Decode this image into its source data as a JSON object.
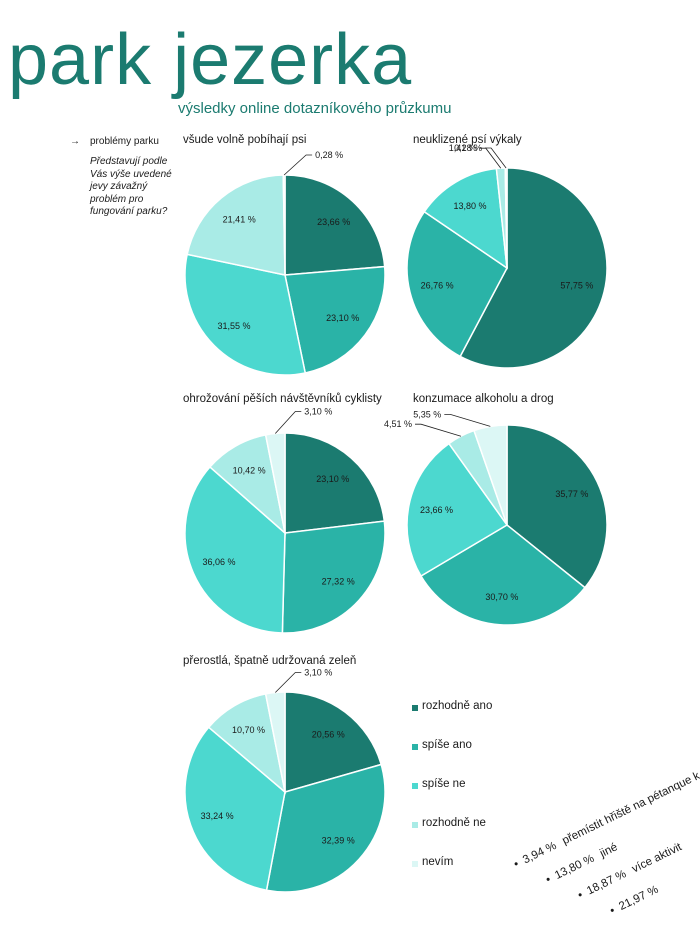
{
  "title": "park jezerka",
  "subtitle": "výsledky online dotazníkového průzkumu",
  "side": {
    "heading": "problémy parku",
    "question": "Představují podle Vás výše uvedené jevy závažný problém pro fungování parku?"
  },
  "colors": [
    "#1b7b70",
    "#2ab3a7",
    "#4cd8cf",
    "#a9ebe6",
    "#dcf7f5"
  ],
  "legend": [
    "rozhodně ano",
    "spíše ano",
    "spíše ne",
    "rozhodně ne",
    "nevím"
  ],
  "chart_data": [
    {
      "type": "pie",
      "title": "všude volně pobíhají psi",
      "categories": [
        "rozhodně ano",
        "spíše ano",
        "spíše ne",
        "rozhodně ne",
        "nevím"
      ],
      "values": [
        23.66,
        23.1,
        31.55,
        21.41,
        0.28
      ],
      "labels": [
        "23,66 %",
        "23,10 %",
        "31,55 %",
        "21,41 %",
        "0,28 %"
      ]
    },
    {
      "type": "pie",
      "title": "neuklizené psí výkaly",
      "categories": [
        "rozhodně ano",
        "spíše ano",
        "spíše ne",
        "rozhodně ne",
        "nevím"
      ],
      "values": [
        57.75,
        26.76,
        13.8,
        1.41,
        0.28
      ],
      "labels": [
        "57,75 %",
        "26,76 %",
        "13,80 %",
        "1,41 %",
        "0,28 %"
      ]
    },
    {
      "type": "pie",
      "title": "ohrožování pěších návštěvníků cyklisty",
      "categories": [
        "rozhodně ano",
        "spíše ano",
        "spíše ne",
        "rozhodně ne",
        "nevím"
      ],
      "values": [
        23.1,
        27.32,
        36.06,
        10.42,
        3.1
      ],
      "labels": [
        "23,10 %",
        "27,32 %",
        "36,06 %",
        "10,42 %",
        "3,10 %"
      ]
    },
    {
      "type": "pie",
      "title": "konzumace alkoholu a drog",
      "categories": [
        "rozhodně ano",
        "spíše ano",
        "spíše ne",
        "rozhodně ne",
        "nevím"
      ],
      "values": [
        35.77,
        30.7,
        23.66,
        4.51,
        5.35
      ],
      "labels": [
        "35,77 %",
        "30,70 %",
        "23,66 %",
        "4,51 %",
        "5,35 %"
      ]
    },
    {
      "type": "pie",
      "title": "přerostlá, špatně udržovaná zeleň",
      "categories": [
        "rozhodně ano",
        "spíše ano",
        "spíše ne",
        "rozhodně ne",
        "nevím"
      ],
      "values": [
        20.56,
        32.39,
        33.24,
        10.7,
        3.1
      ],
      "labels": [
        "20,56 %",
        "32,39 %",
        "33,24 %",
        "10,70 %",
        "3,10 %"
      ]
    }
  ],
  "cutoff_list": [
    {
      "pct": "3,94 %",
      "text": "přemístit hřiště na pétanque k J"
    },
    {
      "pct": "13,80 %",
      "text": "jiné"
    },
    {
      "pct": "18,87 %",
      "text": "více aktivit"
    },
    {
      "pct": "21,97 %",
      "text": ""
    }
  ]
}
